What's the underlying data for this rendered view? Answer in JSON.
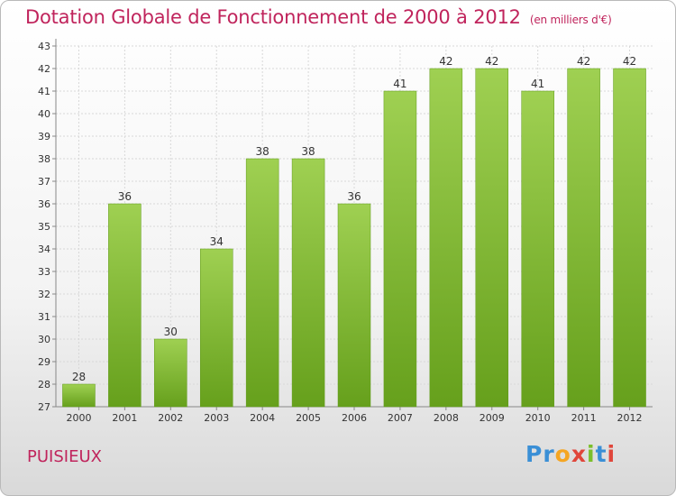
{
  "title": "Dotation Globale de Fonctionnement de 2000 à 2012",
  "unit": "(en milliers d'€)",
  "commune": "PUISIEUX",
  "logo": {
    "letters": [
      "P",
      "r",
      "o",
      "x",
      "i",
      "t",
      "i"
    ],
    "colors": [
      "#3a8fd6",
      "#3a8fd6",
      "#f5a623",
      "#e0463b",
      "#7bbf2a",
      "#3a8fd6",
      "#e0463b"
    ]
  },
  "chart_data": {
    "type": "bar",
    "categories": [
      "2000",
      "2001",
      "2002",
      "2003",
      "2004",
      "2005",
      "2006",
      "2007",
      "2008",
      "2009",
      "2010",
      "2011",
      "2012"
    ],
    "values": [
      28,
      36,
      30,
      34,
      38,
      38,
      36,
      41,
      42,
      42,
      41,
      42,
      42
    ],
    "ylim": [
      27,
      43
    ],
    "yticks": [
      27,
      28,
      29,
      30,
      31,
      32,
      33,
      34,
      35,
      36,
      37,
      38,
      39,
      40,
      41,
      42,
      43
    ],
    "grid": true,
    "bar_color": "#7ab52f",
    "title": "Dotation Globale de Fonctionnement de 2000 à 2012"
  }
}
